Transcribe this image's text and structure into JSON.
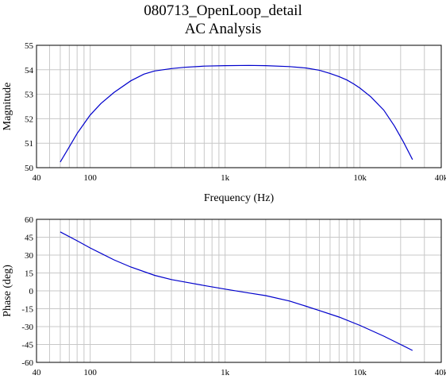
{
  "title_line1": "080713_OpenLoop_detail",
  "title_line2": "AC Analysis",
  "colors": {
    "trace": "#0000cc",
    "grid": "#c8c8c8",
    "frame": "#000000"
  },
  "chart_data": [
    {
      "type": "line",
      "xlabel": "Frequency (Hz)",
      "ylabel": "Magnitude",
      "xscale": "log",
      "xlim": [
        40,
        40000
      ],
      "ylim": [
        50,
        55
      ],
      "xticks": [
        40,
        100,
        1000,
        10000,
        40000
      ],
      "xtick_labels": [
        "40",
        "100",
        "1k",
        "10k",
        "40k"
      ],
      "yticks": [
        50,
        51,
        52,
        53,
        54,
        55
      ],
      "ytick_labels": [
        "50",
        "51",
        "52",
        "53",
        "54",
        "55"
      ],
      "grid": true,
      "series": [
        {
          "x": [
            60,
            70,
            80,
            90,
            100,
            120,
            150,
            200,
            250,
            300,
            400,
            500,
            700,
            1000,
            1500,
            2000,
            3000,
            4000,
            5000,
            6000,
            7000,
            8000,
            9000,
            10000,
            12000,
            15000,
            18000,
            21000,
            24500
          ],
          "y": [
            50.23,
            50.85,
            51.4,
            51.8,
            52.15,
            52.62,
            53.07,
            53.55,
            53.82,
            53.95,
            54.05,
            54.1,
            54.15,
            54.17,
            54.18,
            54.17,
            54.13,
            54.07,
            53.98,
            53.85,
            53.72,
            53.58,
            53.42,
            53.25,
            52.9,
            52.35,
            51.7,
            51.05,
            50.33
          ]
        }
      ]
    },
    {
      "type": "line",
      "xlabel": "",
      "ylabel": "Phase (deg)",
      "xscale": "log",
      "xlim": [
        40,
        40000
      ],
      "ylim": [
        -60,
        60
      ],
      "xticks": [
        40,
        100,
        1000,
        10000,
        40000
      ],
      "xtick_labels": [
        "40",
        "100",
        "1k",
        "10k",
        "40k"
      ],
      "yticks": [
        -60,
        -45,
        -30,
        -15,
        0,
        15,
        30,
        45,
        60
      ],
      "ytick_labels": [
        "-60",
        "-45",
        "-30",
        "-15",
        "0",
        "15",
        "30",
        "45",
        "60"
      ],
      "grid": true,
      "series": [
        {
          "x": [
            60,
            80,
            100,
            150,
            200,
            300,
            400,
            500,
            700,
            1000,
            1500,
            2000,
            3000,
            4000,
            5000,
            7000,
            10000,
            15000,
            20000,
            24500
          ],
          "y": [
            49.5,
            42,
            36,
            26,
            20,
            13,
            9.5,
            7.5,
            4.5,
            1.5,
            -1.8,
            -4,
            -8.5,
            -13,
            -16.5,
            -22,
            -29,
            -38,
            -45,
            -50
          ]
        }
      ]
    }
  ]
}
